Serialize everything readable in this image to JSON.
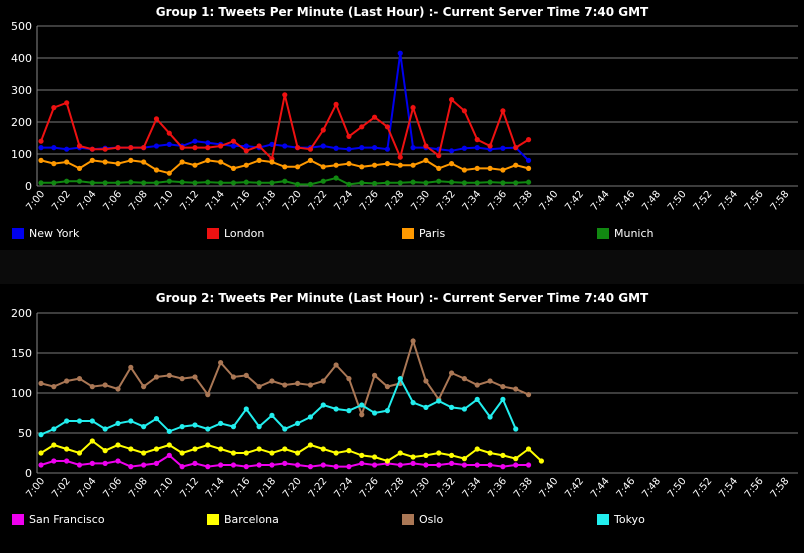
{
  "chart_data": [
    {
      "type": "line",
      "title": "Group 1: Tweets Per Minute (Last Hour) :- Current Server Time 7:40 GMT",
      "ylim": [
        0,
        500
      ],
      "yticks": [
        0,
        100,
        200,
        300,
        400,
        500
      ],
      "x_labels": [
        "7:00",
        "7:02",
        "7:04",
        "7:06",
        "7:08",
        "7:10",
        "7:12",
        "7:14",
        "7:16",
        "7:18",
        "7:20",
        "7:22",
        "7:24",
        "7:26",
        "7:28",
        "7:30",
        "7:32",
        "7:34",
        "7:36",
        "7:38",
        "7:40",
        "7:42",
        "7:44",
        "7:46",
        "7:48",
        "7:50",
        "7:52",
        "7:54",
        "7:56",
        "7:58"
      ],
      "grid": true,
      "legend_position": "bottom",
      "series": [
        {
          "name": "New York",
          "color": "#0000ee",
          "values": [
            120,
            120,
            115,
            120,
            115,
            118,
            120,
            120,
            120,
            125,
            130,
            125,
            140,
            135,
            130,
            125,
            125,
            120,
            130,
            125,
            120,
            120,
            125,
            118,
            115,
            120,
            120,
            115,
            415,
            120,
            120,
            115,
            110,
            118,
            120,
            115,
            118,
            120,
            80
          ]
        },
        {
          "name": "London",
          "color": "#ee1111",
          "values": [
            140,
            245,
            260,
            125,
            115,
            115,
            120,
            120,
            120,
            210,
            165,
            120,
            120,
            120,
            125,
            140,
            110,
            125,
            85,
            285,
            120,
            115,
            175,
            255,
            155,
            185,
            215,
            185,
            90,
            245,
            125,
            95,
            270,
            235,
            145,
            125,
            235,
            120,
            145
          ]
        },
        {
          "name": "Paris",
          "color": "#ff9900",
          "values": [
            80,
            70,
            75,
            55,
            80,
            75,
            70,
            80,
            75,
            50,
            40,
            75,
            65,
            80,
            75,
            55,
            65,
            80,
            75,
            60,
            60,
            80,
            60,
            65,
            70,
            60,
            65,
            70,
            65,
            65,
            80,
            55,
            70,
            50,
            55,
            55,
            50,
            65,
            55
          ]
        },
        {
          "name": "Munich",
          "color": "#118811",
          "values": [
            10,
            10,
            15,
            15,
            10,
            10,
            10,
            12,
            10,
            10,
            15,
            12,
            10,
            12,
            10,
            10,
            12,
            10,
            10,
            15,
            5,
            5,
            15,
            25,
            5,
            10,
            8,
            10,
            10,
            12,
            10,
            15,
            12,
            10,
            10,
            12,
            10,
            10,
            12
          ]
        }
      ]
    },
    {
      "type": "line",
      "title": "Group 2: Tweets Per Minute (Last Hour) :- Current Server Time 7:40 GMT",
      "ylim": [
        0,
        200
      ],
      "yticks": [
        0,
        50,
        100,
        150,
        200
      ],
      "x_labels": [
        "7:00",
        "7:02",
        "7:04",
        "7:06",
        "7:08",
        "7:10",
        "7:12",
        "7:14",
        "7:16",
        "7:18",
        "7:20",
        "7:22",
        "7:24",
        "7:26",
        "7:28",
        "7:30",
        "7:32",
        "7:34",
        "7:36",
        "7:38",
        "7:40",
        "7:42",
        "7:44",
        "7:46",
        "7:48",
        "7:50",
        "7:52",
        "7:54",
        "7:56",
        "7:58"
      ],
      "grid": true,
      "legend_position": "bottom",
      "series": [
        {
          "name": "San Francisco",
          "color": "#ee00ee",
          "values": [
            10,
            15,
            15,
            10,
            12,
            12,
            15,
            8,
            10,
            12,
            22,
            8,
            12,
            8,
            10,
            10,
            8,
            10,
            10,
            12,
            10,
            8,
            10,
            8,
            8,
            12,
            10,
            12,
            10,
            12,
            10,
            10,
            12,
            10,
            10,
            10,
            8,
            10,
            10
          ]
        },
        {
          "name": "Barcelona",
          "color": "#ffff00",
          "values": [
            25,
            35,
            30,
            25,
            40,
            28,
            35,
            30,
            25,
            30,
            35,
            25,
            30,
            35,
            30,
            25,
            25,
            30,
            25,
            30,
            25,
            35,
            30,
            25,
            28,
            22,
            20,
            15,
            25,
            20,
            22,
            25,
            22,
            18,
            30,
            25,
            22,
            18,
            30,
            15
          ]
        },
        {
          "name": "Oslo",
          "color": "#aa7755",
          "values": [
            112,
            108,
            115,
            118,
            108,
            110,
            105,
            132,
            108,
            120,
            122,
            118,
            120,
            98,
            138,
            120,
            122,
            108,
            115,
            110,
            112,
            110,
            115,
            135,
            118,
            73,
            122,
            108,
            112,
            165,
            115,
            92,
            125,
            118,
            110,
            115,
            108,
            105,
            98
          ]
        },
        {
          "name": "Tokyo",
          "color": "#22eeee",
          "values": [
            48,
            55,
            65,
            65,
            65,
            55,
            62,
            65,
            58,
            68,
            52,
            58,
            60,
            55,
            62,
            58,
            80,
            58,
            72,
            55,
            62,
            70,
            85,
            80,
            78,
            85,
            75,
            78,
            118,
            88,
            82,
            90,
            82,
            80,
            92,
            70,
            92,
            55
          ]
        }
      ]
    }
  ]
}
